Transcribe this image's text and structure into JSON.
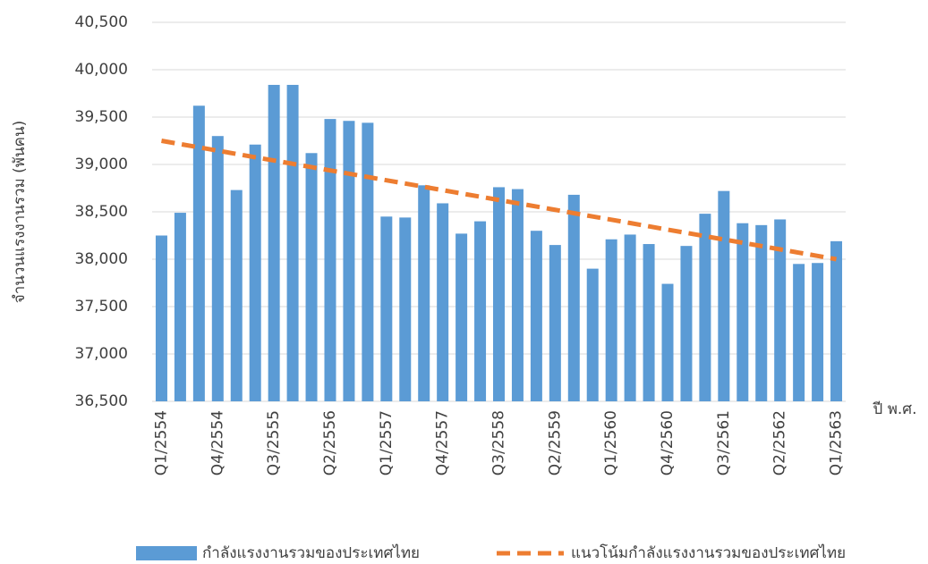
{
  "chart_data": {
    "type": "bar",
    "y_label": "จำนวนแรงงานรวม (พันคน)",
    "x_label": "ปี พ.ศ.",
    "categories": [
      "Q1/2554",
      null,
      null,
      "Q4/2554",
      null,
      null,
      "Q3/2555",
      null,
      null,
      "Q2/2556",
      null,
      null,
      "Q1/2557",
      null,
      null,
      "Q4/2557",
      null,
      null,
      "Q3/2558",
      null,
      null,
      "Q2/2559",
      null,
      null,
      "Q1/2560",
      null,
      null,
      "Q4/2560",
      null,
      null,
      "Q3/2561",
      null,
      null,
      "Q2/2562",
      null,
      null,
      "Q1/2563"
    ],
    "series": [
      {
        "name": "กำลังแรงงานรวมของประเทศไทย",
        "type": "bar",
        "color": "#5b9bd5",
        "values": [
          38250,
          38490,
          39620,
          39300,
          38730,
          39210,
          39840,
          39840,
          39120,
          39480,
          39460,
          39440,
          38450,
          38440,
          38780,
          38590,
          38270,
          38400,
          38760,
          38740,
          38300,
          38150,
          38680,
          37900,
          38210,
          38260,
          38160,
          37740,
          38140,
          38480,
          38720,
          38380,
          38360,
          38420,
          37950,
          37960,
          38190
        ]
      },
      {
        "name": "แนวโน้มกำลังแรงงานรวมของประเทศไทย",
        "type": "line",
        "color": "#ed7d31",
        "dashed": true,
        "values": [
          39250,
          39215,
          39181,
          39146,
          39111,
          39076,
          39042,
          39007,
          38972,
          38937,
          38903,
          38868,
          38833,
          38799,
          38764,
          38729,
          38694,
          38660,
          38625,
          38590,
          38556,
          38521,
          38486,
          38451,
          38417,
          38382,
          38347,
          38312,
          38278,
          38243,
          38208,
          38174,
          38139,
          38104,
          38069,
          38035,
          38000
        ]
      }
    ],
    "ylim": [
      36500,
      40500
    ],
    "yticks": [
      {
        "value": 36500,
        "label": "36,500"
      },
      {
        "value": 37000,
        "label": "37,000"
      },
      {
        "value": 37500,
        "label": "37,500"
      },
      {
        "value": 38000,
        "label": "38,000"
      },
      {
        "value": 38500,
        "label": "38,500"
      },
      {
        "value": 39000,
        "label": "39,000"
      },
      {
        "value": 39500,
        "label": "39,500"
      },
      {
        "value": 40000,
        "label": "40,000"
      },
      {
        "value": 40500,
        "label": "40,500"
      }
    ],
    "grid": true,
    "legend": "bottom"
  }
}
